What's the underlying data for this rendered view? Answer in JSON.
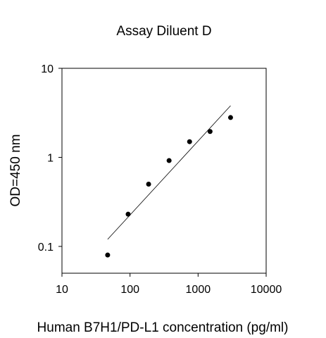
{
  "chart_data": {
    "type": "scatter",
    "title": "Assay Diluent  D",
    "xlabel": "Human B7H1/PD-L1 concentration (pg/ml)",
    "ylabel": "OD=450 nm",
    "xscale": "log",
    "yscale": "log",
    "xlim": [
      10,
      10000
    ],
    "ylim": [
      0.05,
      10
    ],
    "x_ticks": [
      10,
      100,
      1000,
      10000
    ],
    "x_tick_labels": [
      "10",
      "100",
      "1000",
      "10000"
    ],
    "y_ticks": [
      0.1,
      1,
      10
    ],
    "y_tick_labels": [
      "0.1",
      "1",
      "10"
    ],
    "grid": false,
    "legend": "none",
    "series": [
      {
        "x": [
          46.9,
          93.8,
          187.5,
          375,
          750,
          1500,
          3000
        ],
        "y": [
          0.08,
          0.23,
          0.5,
          0.92,
          1.5,
          1.95,
          2.8
        ]
      }
    ],
    "fit_line": {
      "x": [
        46.9,
        3000
      ],
      "y": [
        0.12,
        3.8
      ]
    },
    "colors": {
      "points": "#000000",
      "line": "#000000",
      "axes": "#000000"
    }
  }
}
